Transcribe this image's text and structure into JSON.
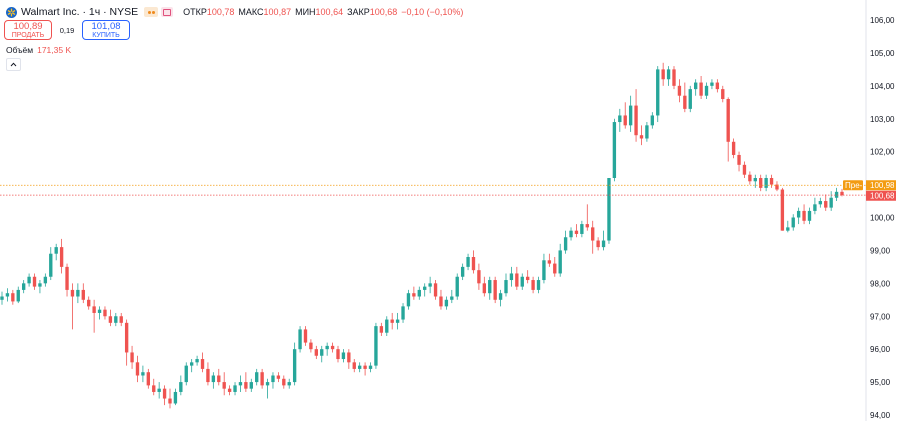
{
  "header": {
    "title": "Walmart Inc. · 1ч · NYSE",
    "ohlc": [
      {
        "label": "ОТКР",
        "value": "100,78"
      },
      {
        "label": "МАКС",
        "value": "100,87"
      },
      {
        "label": "МИН",
        "value": "100,64"
      },
      {
        "label": "ЗАКР",
        "value": "100,68"
      }
    ],
    "change": "−0,10 (−0,10%)",
    "icons": [
      "walmart-logo",
      "market-dots-badge",
      "flag-badge"
    ]
  },
  "trade": {
    "sell_price": "100,89",
    "sell_label": "ПРОДАТЬ",
    "spread": "0,19",
    "buy_price": "101,08",
    "buy_label": "КУПИТЬ"
  },
  "volume": {
    "label": "Объём",
    "value": "171,35 K"
  },
  "price_tags": {
    "premarket_label": "Пре-",
    "premarket_value": "100,98",
    "last_value": "100,68"
  },
  "colors": {
    "up": "#26a69a",
    "down": "#ef5350",
    "premarket": "#f39c12",
    "accent": "#2962ff"
  },
  "chart_data": {
    "type": "candlestick",
    "yaxis": {
      "ticks": [
        "106,00",
        "105,00",
        "104,00",
        "103,00",
        "102,00",
        "101,00",
        "100,00",
        "99,00",
        "98,00",
        "97,00",
        "96,00",
        "95,00",
        "94,00"
      ],
      "range": [
        94,
        106
      ],
      "position": "right"
    },
    "premarket_line": 100.98,
    "last_line": 100.68,
    "candles": [
      [
        97.5,
        97.75,
        97.35,
        97.6
      ],
      [
        97.6,
        97.85,
        97.45,
        97.7
      ],
      [
        97.7,
        97.8,
        97.35,
        97.45
      ],
      [
        97.45,
        97.9,
        97.4,
        97.8
      ],
      [
        97.8,
        98.1,
        97.7,
        98.0
      ],
      [
        98.0,
        98.3,
        97.9,
        98.2
      ],
      [
        98.2,
        98.3,
        97.8,
        97.9
      ],
      [
        97.9,
        98.1,
        97.7,
        98.0
      ],
      [
        98.0,
        98.3,
        97.9,
        98.2
      ],
      [
        98.2,
        99.1,
        98.1,
        98.9
      ],
      [
        98.9,
        99.2,
        98.7,
        99.1
      ],
      [
        99.1,
        99.35,
        98.3,
        98.5
      ],
      [
        98.5,
        98.6,
        97.6,
        97.8
      ],
      [
        97.8,
        98.0,
        96.6,
        97.6
      ],
      [
        97.6,
        98.0,
        97.4,
        97.8
      ],
      [
        97.8,
        98.0,
        97.4,
        97.5
      ],
      [
        97.5,
        97.6,
        97.2,
        97.3
      ],
      [
        97.3,
        97.5,
        96.5,
        97.1
      ],
      [
        97.1,
        97.3,
        96.9,
        97.2
      ],
      [
        97.2,
        97.3,
        96.9,
        97.0
      ],
      [
        97.0,
        97.2,
        96.7,
        96.8
      ],
      [
        96.8,
        97.1,
        96.7,
        97.0
      ],
      [
        97.0,
        97.1,
        96.7,
        96.8
      ],
      [
        96.8,
        96.9,
        95.5,
        95.9
      ],
      [
        95.9,
        96.1,
        95.4,
        95.6
      ],
      [
        95.6,
        95.8,
        95.0,
        95.2
      ],
      [
        95.2,
        95.5,
        95.0,
        95.3
      ],
      [
        95.3,
        95.4,
        94.8,
        94.9
      ],
      [
        94.9,
        95.1,
        94.6,
        94.7
      ],
      [
        94.7,
        95.0,
        94.5,
        94.8
      ],
      [
        94.8,
        94.9,
        94.3,
        94.5
      ],
      [
        94.5,
        94.8,
        94.2,
        94.35
      ],
      [
        94.35,
        94.8,
        94.3,
        94.7
      ],
      [
        94.7,
        95.2,
        94.6,
        95.0
      ],
      [
        95.0,
        95.6,
        94.9,
        95.5
      ],
      [
        95.5,
        95.7,
        95.3,
        95.6
      ],
      [
        95.6,
        95.8,
        95.5,
        95.7
      ],
      [
        95.7,
        95.9,
        95.3,
        95.4
      ],
      [
        95.4,
        95.6,
        94.9,
        95.0
      ],
      [
        95.0,
        95.3,
        94.8,
        95.2
      ],
      [
        95.2,
        95.4,
        94.9,
        95.0
      ],
      [
        95.0,
        95.3,
        94.6,
        94.8
      ],
      [
        94.8,
        94.9,
        94.6,
        94.7
      ],
      [
        94.7,
        95.0,
        94.6,
        94.9
      ],
      [
        94.9,
        95.2,
        94.7,
        95.0
      ],
      [
        95.0,
        95.3,
        94.7,
        94.8
      ],
      [
        94.8,
        95.1,
        94.7,
        95.0
      ],
      [
        95.0,
        95.4,
        94.9,
        95.3
      ],
      [
        95.3,
        95.4,
        94.8,
        94.9
      ],
      [
        94.9,
        95.1,
        94.5,
        95.0
      ],
      [
        95.0,
        95.3,
        94.8,
        95.2
      ],
      [
        95.2,
        95.3,
        95.0,
        95.1
      ],
      [
        95.1,
        95.2,
        94.8,
        94.9
      ],
      [
        94.9,
        95.1,
        94.8,
        95.0
      ],
      [
        95.0,
        96.2,
        94.9,
        96.0
      ],
      [
        96.0,
        96.7,
        95.9,
        96.6
      ],
      [
        96.6,
        96.7,
        96.1,
        96.2
      ],
      [
        96.2,
        96.3,
        95.9,
        96.0
      ],
      [
        96.0,
        96.1,
        95.7,
        95.8
      ],
      [
        95.8,
        96.1,
        95.6,
        96.0
      ],
      [
        96.0,
        96.2,
        95.8,
        96.1
      ],
      [
        96.1,
        96.2,
        95.9,
        96.0
      ],
      [
        96.0,
        96.1,
        95.6,
        95.7
      ],
      [
        95.7,
        96.0,
        95.6,
        95.9
      ],
      [
        95.9,
        96.0,
        95.4,
        95.6
      ],
      [
        95.6,
        95.7,
        95.3,
        95.4
      ],
      [
        95.4,
        95.6,
        95.3,
        95.5
      ],
      [
        95.5,
        95.6,
        95.2,
        95.4
      ],
      [
        95.4,
        95.6,
        95.3,
        95.5
      ],
      [
        95.5,
        96.8,
        95.4,
        96.7
      ],
      [
        96.7,
        96.8,
        96.4,
        96.5
      ],
      [
        96.5,
        97.0,
        96.4,
        96.9
      ],
      [
        96.9,
        97.1,
        96.6,
        96.8
      ],
      [
        96.8,
        97.1,
        96.6,
        96.9
      ],
      [
        96.9,
        97.4,
        96.8,
        97.3
      ],
      [
        97.3,
        97.8,
        97.2,
        97.7
      ],
      [
        97.7,
        97.9,
        97.5,
        97.6
      ],
      [
        97.6,
        97.9,
        97.5,
        97.8
      ],
      [
        97.8,
        98.0,
        97.6,
        97.9
      ],
      [
        97.9,
        98.2,
        97.7,
        98.0
      ],
      [
        98.0,
        98.1,
        97.5,
        97.6
      ],
      [
        97.6,
        97.8,
        97.2,
        97.3
      ],
      [
        97.3,
        97.6,
        97.2,
        97.5
      ],
      [
        97.5,
        97.8,
        97.4,
        97.6
      ],
      [
        97.6,
        98.3,
        97.5,
        98.2
      ],
      [
        98.2,
        98.6,
        98.1,
        98.5
      ],
      [
        98.5,
        98.9,
        98.4,
        98.8
      ],
      [
        98.8,
        99.0,
        98.3,
        98.4
      ],
      [
        98.4,
        98.6,
        97.8,
        98.0
      ],
      [
        98.0,
        98.2,
        97.6,
        97.7
      ],
      [
        97.7,
        98.2,
        97.5,
        98.1
      ],
      [
        98.1,
        98.2,
        97.4,
        97.5
      ],
      [
        97.5,
        97.8,
        97.3,
        97.7
      ],
      [
        97.7,
        98.3,
        97.6,
        98.1
      ],
      [
        98.1,
        98.5,
        97.9,
        98.3
      ],
      [
        98.3,
        98.5,
        97.8,
        97.9
      ],
      [
        97.9,
        98.3,
        97.8,
        98.2
      ],
      [
        98.2,
        98.4,
        98.0,
        98.1
      ],
      [
        98.1,
        98.2,
        97.7,
        97.8
      ],
      [
        97.8,
        98.2,
        97.7,
        98.1
      ],
      [
        98.1,
        98.9,
        98.0,
        98.7
      ],
      [
        98.7,
        98.9,
        98.5,
        98.6
      ],
      [
        98.6,
        98.8,
        98.2,
        98.3
      ],
      [
        98.3,
        99.2,
        98.2,
        99.0
      ],
      [
        99.0,
        99.6,
        98.9,
        99.4
      ],
      [
        99.4,
        99.7,
        99.3,
        99.6
      ],
      [
        99.6,
        99.8,
        99.4,
        99.5
      ],
      [
        99.5,
        99.9,
        99.4,
        99.8
      ],
      [
        99.8,
        100.4,
        99.6,
        99.7
      ],
      [
        99.7,
        99.9,
        98.9,
        99.3
      ],
      [
        99.3,
        99.4,
        99.0,
        99.1
      ],
      [
        99.1,
        99.6,
        99.0,
        99.3
      ],
      [
        99.3,
        101.2,
        99.2,
        101.2
      ],
      [
        101.2,
        103.0,
        101.1,
        102.9
      ],
      [
        102.9,
        103.3,
        102.6,
        103.1
      ],
      [
        103.1,
        103.5,
        102.7,
        102.8
      ],
      [
        102.8,
        103.7,
        102.6,
        103.4
      ],
      [
        103.4,
        103.9,
        102.3,
        102.5
      ],
      [
        102.5,
        102.8,
        102.2,
        102.4
      ],
      [
        102.4,
        102.9,
        102.3,
        102.8
      ],
      [
        102.8,
        103.2,
        102.7,
        103.1
      ],
      [
        103.1,
        104.6,
        102.9,
        104.5
      ],
      [
        104.5,
        104.7,
        104.0,
        104.2
      ],
      [
        104.2,
        104.6,
        104.0,
        104.5
      ],
      [
        104.5,
        104.6,
        103.9,
        104.0
      ],
      [
        104.0,
        104.2,
        103.5,
        103.7
      ],
      [
        103.7,
        104.1,
        103.2,
        103.3
      ],
      [
        103.3,
        104.0,
        103.2,
        103.9
      ],
      [
        103.9,
        104.2,
        103.7,
        104.1
      ],
      [
        104.1,
        104.3,
        103.6,
        103.7
      ],
      [
        103.7,
        104.1,
        103.6,
        104.0
      ],
      [
        104.0,
        104.2,
        103.9,
        104.1
      ],
      [
        104.1,
        104.2,
        103.8,
        103.9
      ],
      [
        103.9,
        104.0,
        103.5,
        103.6
      ],
      [
        103.6,
        103.65,
        101.7,
        102.3
      ],
      [
        102.3,
        102.4,
        101.8,
        101.9
      ],
      [
        101.9,
        102.0,
        101.4,
        101.6
      ],
      [
        101.6,
        101.7,
        101.2,
        101.3
      ],
      [
        101.3,
        101.4,
        101.0,
        101.1
      ],
      [
        101.1,
        101.3,
        100.9,
        101.2
      ],
      [
        101.2,
        101.3,
        100.8,
        100.9
      ],
      [
        100.9,
        101.3,
        100.8,
        101.2
      ],
      [
        101.2,
        101.3,
        100.9,
        101.0
      ],
      [
        101.0,
        101.1,
        100.8,
        100.85
      ],
      [
        100.85,
        100.9,
        99.6,
        99.6
      ],
      [
        99.6,
        99.9,
        99.55,
        99.7
      ],
      [
        99.7,
        100.1,
        99.6,
        100.0
      ],
      [
        100.0,
        100.3,
        99.8,
        100.2
      ],
      [
        100.2,
        100.4,
        99.8,
        99.9
      ],
      [
        99.9,
        100.3,
        99.8,
        100.2
      ],
      [
        100.2,
        100.6,
        100.1,
        100.4
      ],
      [
        100.4,
        100.6,
        100.3,
        100.5
      ],
      [
        100.5,
        100.7,
        100.2,
        100.3
      ],
      [
        100.3,
        100.8,
        100.2,
        100.6
      ],
      [
        100.6,
        100.9,
        100.5,
        100.78
      ],
      [
        100.78,
        100.87,
        100.64,
        100.68
      ]
    ]
  }
}
